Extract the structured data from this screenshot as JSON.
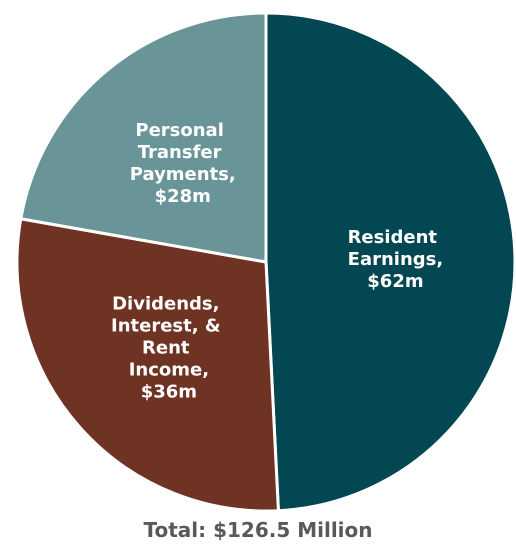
{
  "chart_data": {
    "type": "pie",
    "categories": [
      "Resident Earnings,",
      "Dividends, Interest, & Rent Income,",
      "Personal Transfer Payments,"
    ],
    "values": [
      62,
      36,
      28
    ],
    "value_labels": [
      "$62m",
      "$36m",
      "$28m"
    ],
    "colors": [
      "#034752",
      "#6f3323",
      "#6a9598"
    ],
    "caption": "Total: $126.5 Million"
  }
}
